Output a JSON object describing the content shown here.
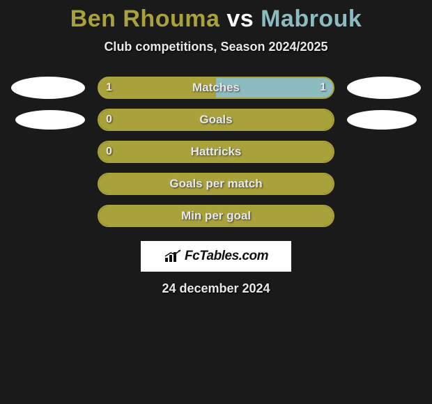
{
  "title": {
    "player1": "Ben Rhouma",
    "vs": " vs ",
    "player2": "Mabrouk",
    "color_p1": "#a9a13a",
    "color_vs": "#ffffff",
    "color_p2": "#8dbcc0"
  },
  "subtitle": "Club competitions, Season 2024/2025",
  "rows": [
    {
      "label": "Matches",
      "left_val": "1",
      "right_val": "1",
      "fill_pct": 50,
      "fill_color": "#a9a13a",
      "bg_color": "#8dbcc0",
      "border_color": "#a9a13a",
      "ellipse_left": "large",
      "ellipse_right": "large"
    },
    {
      "label": "Goals",
      "left_val": "0",
      "right_val": "",
      "fill_pct": 100,
      "fill_color": "#a9a13a",
      "bg_color": "transparent",
      "border_color": "#a9a13a",
      "ellipse_left": "small",
      "ellipse_right": "small"
    },
    {
      "label": "Hattricks",
      "left_val": "0",
      "right_val": "",
      "fill_pct": 100,
      "fill_color": "#a9a13a",
      "bg_color": "transparent",
      "border_color": "#a9a13a",
      "ellipse_left": "none",
      "ellipse_right": "none"
    },
    {
      "label": "Goals per match",
      "left_val": "",
      "right_val": "",
      "fill_pct": 100,
      "fill_color": "#a9a13a",
      "bg_color": "transparent",
      "border_color": "#a9a13a",
      "ellipse_left": "none",
      "ellipse_right": "none"
    },
    {
      "label": "Min per goal",
      "left_val": "",
      "right_val": "",
      "fill_pct": 100,
      "fill_color": "#a9a13a",
      "bg_color": "transparent",
      "border_color": "#a9a13a",
      "ellipse_left": "none",
      "ellipse_right": "none"
    }
  ],
  "logo": {
    "text": "FcTables.com"
  },
  "date": "24 december 2024",
  "background_color": "#1a1a1a"
}
